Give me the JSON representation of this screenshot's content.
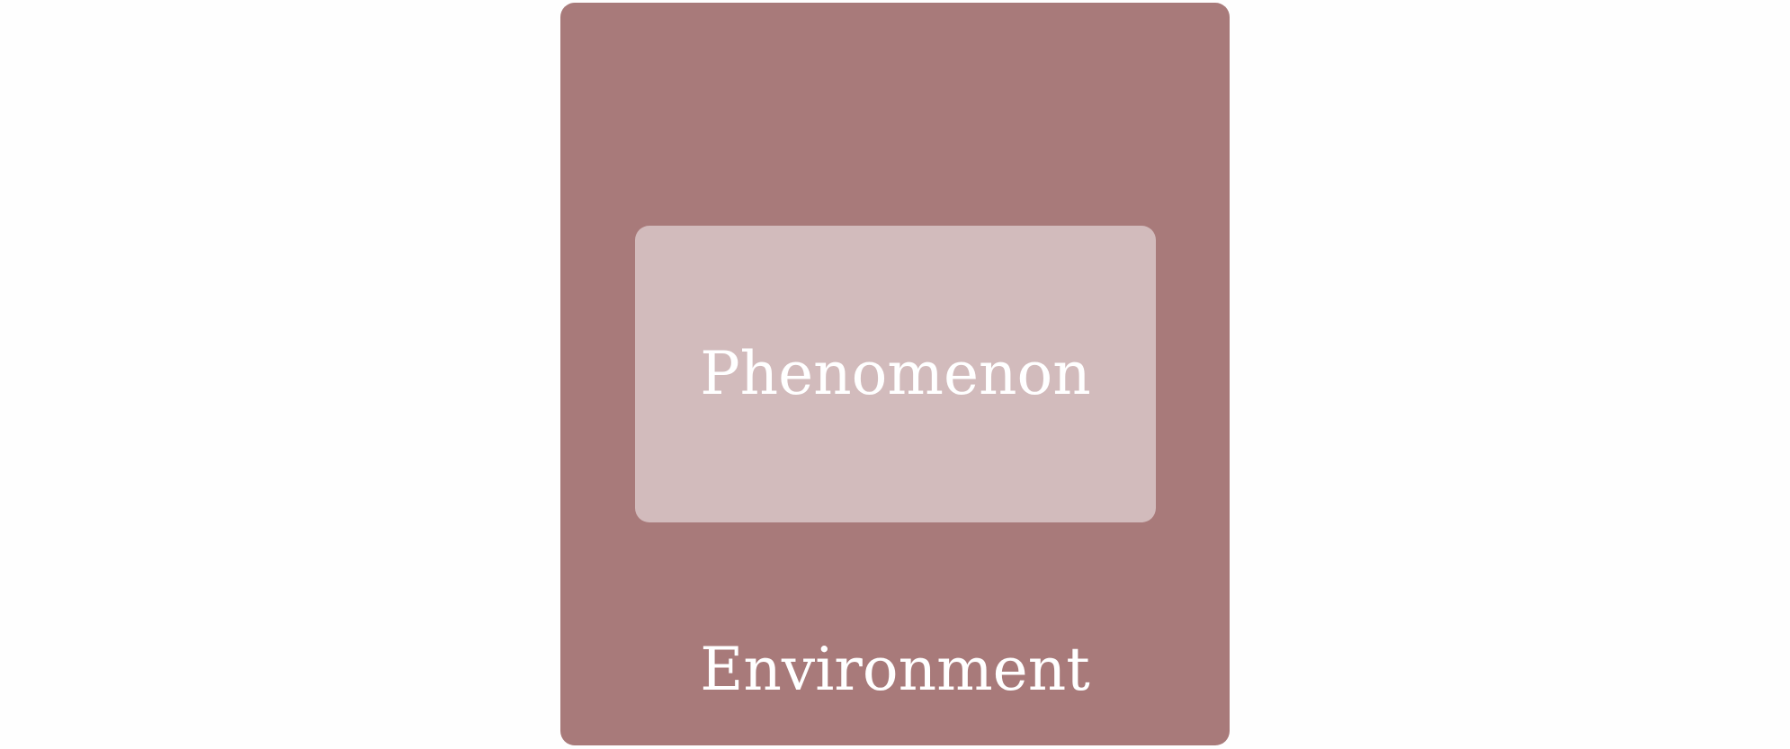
{
  "diagram": {
    "outer": {
      "label": "Environment",
      "color": "#a87a7a"
    },
    "inner": {
      "label": "Phenomenon",
      "color": "#d2bbbc"
    },
    "text_color": "#ffffff"
  }
}
